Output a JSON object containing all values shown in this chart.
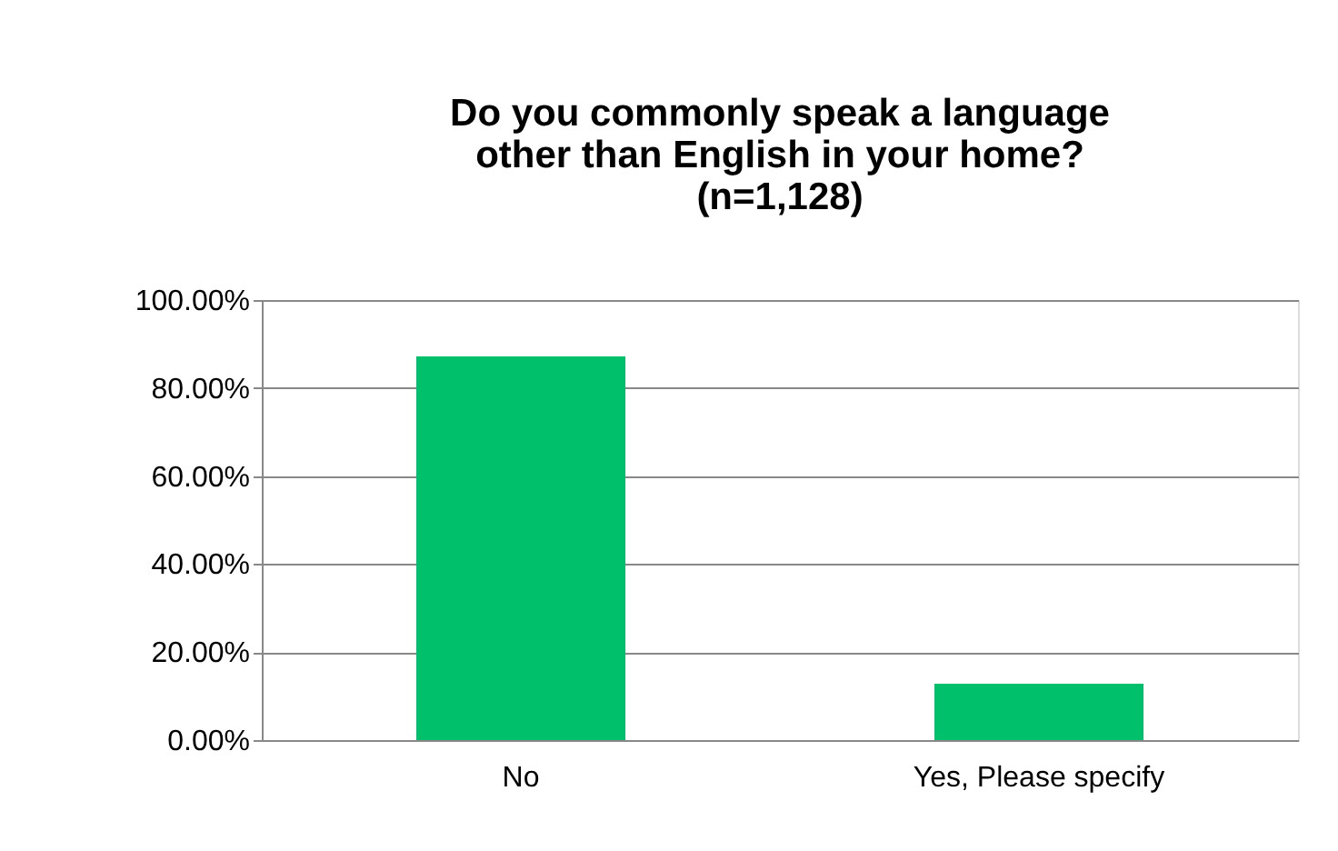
{
  "chart_data": {
    "type": "bar",
    "title": "Do you commonly speak a language other than English in your home? (n=1,128)",
    "categories": [
      "No",
      "Yes, Please specify"
    ],
    "values": [
      87.2,
      12.8
    ],
    "color": "#00c06b",
    "ylim": [
      0,
      100
    ],
    "yticks": [
      {
        "value": 0,
        "label": "0.00%"
      },
      {
        "value": 20,
        "label": "20.00%"
      },
      {
        "value": 40,
        "label": "40.00%"
      },
      {
        "value": 60,
        "label": "60.00%"
      },
      {
        "value": 80,
        "label": "80.00%"
      },
      {
        "value": 100,
        "label": "100.00%"
      }
    ],
    "grid": "y"
  }
}
